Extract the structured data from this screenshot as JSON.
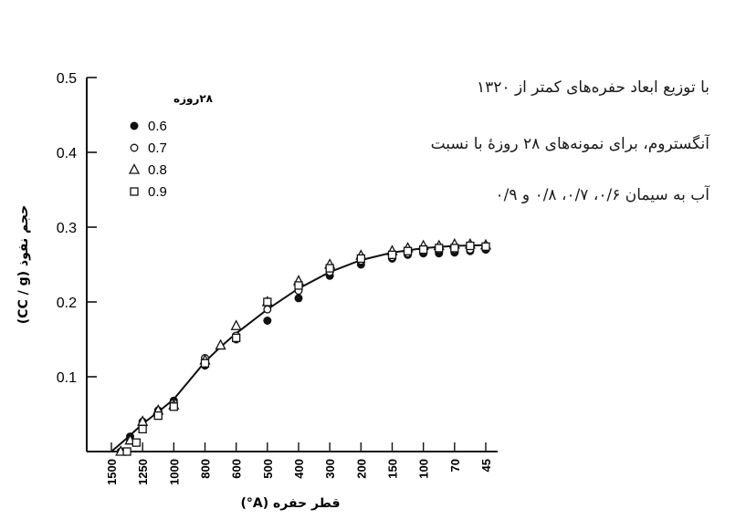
{
  "chart_data": {
    "type": "scatter",
    "caption_lines": [
      "با توزیع ابعاد حفره‌های کمتر از ۱۳۲۰",
      "آنگستروم، برای نمونه‌های ۲۸ روزهٔ با نسبت",
      "آب به سیمان ۰/۶، ۰/۷، ۰/۸ و ۰/۹"
    ],
    "ylabel": "(CC / g) حجم نفوذ",
    "xlabel": "قطر حفره (A°)",
    "legend_title": "۲۸روزه",
    "legend_position": "top-left",
    "ylim": [
      0,
      0.5
    ],
    "yticks": [
      "0.1",
      "0.2",
      "0.3",
      "0.4",
      "0.5"
    ],
    "xticks": [
      "1500",
      "1250",
      "1000",
      "800",
      "600",
      "500",
      "400",
      "300",
      "200",
      "150",
      "100",
      "70",
      "45"
    ],
    "xrange": [
      0,
      12
    ],
    "curve": [
      [
        0.0,
        0.0
      ],
      [
        0.5,
        0.018
      ],
      [
        1.0,
        0.037
      ],
      [
        1.5,
        0.053
      ],
      [
        2.0,
        0.07
      ],
      [
        3.0,
        0.12
      ],
      [
        3.5,
        0.14
      ],
      [
        4.0,
        0.158
      ],
      [
        5.0,
        0.19
      ],
      [
        6.0,
        0.218
      ],
      [
        7.0,
        0.24
      ],
      [
        8.0,
        0.256
      ],
      [
        9.0,
        0.266
      ],
      [
        10.0,
        0.272
      ],
      [
        11.0,
        0.275
      ],
      [
        12.0,
        0.276
      ]
    ],
    "series": [
      {
        "name": "0.6",
        "marker": "filled-circle",
        "points": [
          [
            0.3,
            0.0
          ],
          [
            0.6,
            0.02
          ],
          [
            1.0,
            0.04
          ],
          [
            1.5,
            0.055
          ],
          [
            2.0,
            0.068
          ],
          [
            3.0,
            0.115
          ],
          [
            4.0,
            0.15
          ],
          [
            5.0,
            0.175
          ],
          [
            6.0,
            0.205
          ],
          [
            7.0,
            0.235
          ],
          [
            8.0,
            0.25
          ],
          [
            9.0,
            0.258
          ],
          [
            9.5,
            0.263
          ],
          [
            10.0,
            0.265
          ],
          [
            10.5,
            0.265
          ],
          [
            11.0,
            0.266
          ],
          [
            11.5,
            0.268
          ],
          [
            12.0,
            0.27
          ]
        ]
      },
      {
        "name": "0.7",
        "marker": "open-circle",
        "points": [
          [
            0.4,
            0.0
          ],
          [
            0.6,
            0.015
          ],
          [
            1.0,
            0.035
          ],
          [
            1.5,
            0.05
          ],
          [
            2.0,
            0.065
          ],
          [
            3.0,
            0.125
          ],
          [
            4.0,
            0.155
          ],
          [
            5.0,
            0.19
          ],
          [
            6.0,
            0.215
          ],
          [
            7.0,
            0.24
          ],
          [
            8.0,
            0.255
          ],
          [
            9.0,
            0.26
          ],
          [
            9.5,
            0.265
          ],
          [
            10.0,
            0.268
          ],
          [
            10.5,
            0.27
          ],
          [
            11.0,
            0.27
          ],
          [
            11.5,
            0.27
          ],
          [
            12.0,
            0.272
          ]
        ]
      },
      {
        "name": "0.8",
        "marker": "open-triangle",
        "points": [
          [
            0.3,
            0.0
          ],
          [
            0.6,
            0.015
          ],
          [
            1.0,
            0.04
          ],
          [
            1.5,
            0.055
          ],
          [
            2.0,
            0.062
          ],
          [
            3.0,
            0.122
          ],
          [
            3.5,
            0.142
          ],
          [
            4.0,
            0.168
          ],
          [
            5.0,
            0.2
          ],
          [
            6.0,
            0.228
          ],
          [
            7.0,
            0.25
          ],
          [
            8.0,
            0.262
          ],
          [
            9.0,
            0.268
          ],
          [
            9.5,
            0.272
          ],
          [
            10.0,
            0.275
          ],
          [
            10.5,
            0.275
          ],
          [
            11.0,
            0.277
          ],
          [
            11.5,
            0.277
          ],
          [
            12.0,
            0.276
          ]
        ]
      },
      {
        "name": "0.9",
        "marker": "open-square",
        "points": [
          [
            0.5,
            0.0
          ],
          [
            0.8,
            0.012
          ],
          [
            1.0,
            0.03
          ],
          [
            1.5,
            0.048
          ],
          [
            2.0,
            0.06
          ],
          [
            3.0,
            0.118
          ],
          [
            4.0,
            0.152
          ],
          [
            5.0,
            0.2
          ],
          [
            6.0,
            0.222
          ],
          [
            7.0,
            0.245
          ],
          [
            8.0,
            0.258
          ],
          [
            9.0,
            0.263
          ],
          [
            9.5,
            0.268
          ],
          [
            10.0,
            0.27
          ],
          [
            10.5,
            0.272
          ],
          [
            11.0,
            0.272
          ],
          [
            11.5,
            0.275
          ],
          [
            12.0,
            0.274
          ]
        ]
      }
    ]
  }
}
